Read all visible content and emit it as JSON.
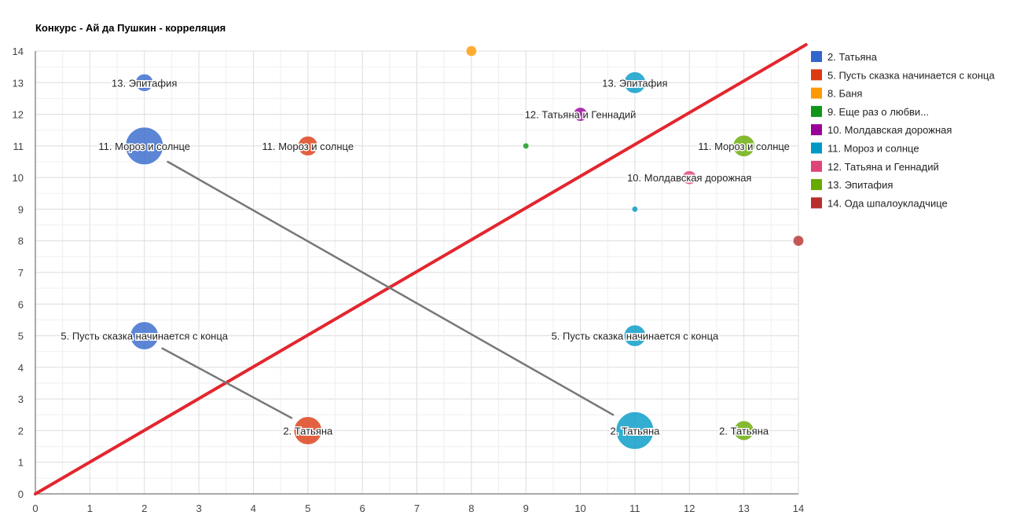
{
  "chart_data": {
    "type": "scatter",
    "subtype": "bubble",
    "title": "Конкурс - Ай да Пушкин - корреляция",
    "xlabel": "",
    "ylabel": "",
    "xlim": [
      0,
      14
    ],
    "ylim": [
      0,
      14
    ],
    "x_ticks": [
      "0",
      "1",
      "2",
      "3",
      "4",
      "5",
      "6",
      "7",
      "8",
      "9",
      "10",
      "11",
      "12",
      "13",
      "14"
    ],
    "y_ticks": [
      "0",
      "1",
      "2",
      "3",
      "4",
      "5",
      "6",
      "7",
      "8",
      "9",
      "10",
      "11",
      "12",
      "13",
      "14"
    ],
    "grid": true,
    "legend_position": "right",
    "series": [
      {
        "name": "2. Татьяна",
        "color": "#3366cc",
        "points": [
          {
            "x": 2,
            "y": 13,
            "size": 8,
            "label": "13. Эпитафия"
          },
          {
            "x": 2,
            "y": 11,
            "size": 36,
            "label": "11. Мороз и солнце"
          },
          {
            "x": 2,
            "y": 5,
            "size": 20,
            "label": "5. Пусть сказка начинается с конца"
          }
        ]
      },
      {
        "name": "5. Пусть сказка начинается с конца",
        "color": "#dc3912",
        "points": [
          {
            "x": 5,
            "y": 11,
            "size": 10,
            "label": "11. Мороз и солнце"
          },
          {
            "x": 5,
            "y": 2,
            "size": 20,
            "label": "2. Татьяна"
          }
        ]
      },
      {
        "name": "8. Баня",
        "color": "#ff9900",
        "points": [
          {
            "x": 8,
            "y": 14,
            "size": 3,
            "label": ""
          }
        ]
      },
      {
        "name": "9. Еще раз о любви...",
        "color": "#109618",
        "points": [
          {
            "x": 9,
            "y": 11,
            "size": 1,
            "label": ""
          }
        ]
      },
      {
        "name": "10. Молдавская дорожная",
        "color": "#990099",
        "points": [
          {
            "x": 10,
            "y": 12,
            "size": 5,
            "label": "12. Татьяна и Геннадий"
          }
        ]
      },
      {
        "name": "11. Мороз и солнце",
        "color": "#0099c6",
        "points": [
          {
            "x": 11,
            "y": 13,
            "size": 12,
            "label": "13. Эпитафия"
          },
          {
            "x": 11,
            "y": 9,
            "size": 1,
            "label": ""
          },
          {
            "x": 11,
            "y": 5,
            "size": 12,
            "label": "5. Пусть сказка начинается с конца"
          },
          {
            "x": 11,
            "y": 2,
            "size": 36,
            "label": "2. Татьяна"
          }
        ]
      },
      {
        "name": "12. Татьяна и Геннадий",
        "color": "#dd4477",
        "points": [
          {
            "x": 12,
            "y": 10,
            "size": 5,
            "label": "10. Молдавская дорожная"
          }
        ]
      },
      {
        "name": "13. Эпитафия",
        "color": "#66aa00",
        "points": [
          {
            "x": 13,
            "y": 11,
            "size": 12,
            "label": "11. Мороз и солнце"
          },
          {
            "x": 13,
            "y": 2,
            "size": 10,
            "label": "2. Татьяна"
          }
        ]
      },
      {
        "name": "14. Ода шпалоукладчице",
        "color": "#b82e2e",
        "points": [
          {
            "x": 14,
            "y": 8,
            "size": 3,
            "label": ""
          }
        ]
      }
    ],
    "annotation_lines": [
      {
        "name": "diagonal",
        "color": "#e3262e",
        "from": [
          0,
          0
        ],
        "to": [
          14.14,
          14.2
        ]
      },
      {
        "name": "connector-1",
        "color": "#777777",
        "from": [
          2.43,
          10.5
        ],
        "to": [
          10.6,
          2.5
        ]
      },
      {
        "name": "connector-2",
        "color": "#777777",
        "from": [
          2.33,
          4.6
        ],
        "to": [
          4.7,
          2.4
        ]
      }
    ]
  }
}
